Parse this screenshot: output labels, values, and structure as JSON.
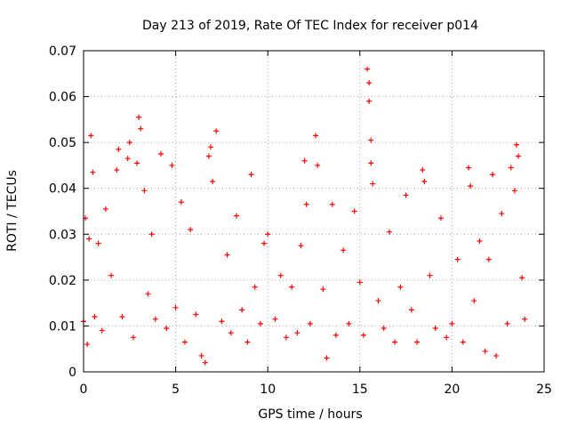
{
  "chart_data": {
    "type": "scatter",
    "title": "Day 213 of 2019, Rate Of TEC Index for receiver p014",
    "xlabel": "GPS time / hours",
    "ylabel": "ROTI / TECUs",
    "xlim": [
      0,
      25
    ],
    "ylim": [
      0,
      0.07
    ],
    "xticks": [
      0,
      5,
      10,
      15,
      20,
      25
    ],
    "xtick_labels": [
      "0",
      "5",
      "10",
      "15",
      "20",
      "25"
    ],
    "yticks": [
      0,
      0.01,
      0.02,
      0.03,
      0.04,
      0.05,
      0.06,
      0.07
    ],
    "ytick_labels": [
      "0",
      "0.01",
      "0.02",
      "0.03",
      "0.04",
      "0.05",
      "0.06",
      "0.07"
    ],
    "grid": true,
    "marker": "+",
    "color": "#ff0000",
    "data_gap_hours": [
      10.0,
      10.3
    ],
    "series": [
      {
        "name": "ROTI",
        "points": [
          [
            0.0,
            0.011
          ],
          [
            0.1,
            0.0335
          ],
          [
            0.2,
            0.006
          ],
          [
            0.3,
            0.029
          ],
          [
            0.4,
            0.0515
          ],
          [
            0.5,
            0.0435
          ],
          [
            0.6,
            0.012
          ],
          [
            0.8,
            0.028
          ],
          [
            1.0,
            0.009
          ],
          [
            1.2,
            0.0355
          ],
          [
            1.5,
            0.021
          ],
          [
            1.8,
            0.044
          ],
          [
            1.9,
            0.0485
          ],
          [
            2.1,
            0.012
          ],
          [
            2.4,
            0.0465
          ],
          [
            2.5,
            0.05
          ],
          [
            2.7,
            0.0075
          ],
          [
            2.9,
            0.0455
          ],
          [
            3.0,
            0.0555
          ],
          [
            3.1,
            0.053
          ],
          [
            3.3,
            0.0395
          ],
          [
            3.5,
            0.017
          ],
          [
            3.7,
            0.03
          ],
          [
            3.9,
            0.0115
          ],
          [
            4.2,
            0.0475
          ],
          [
            4.5,
            0.0095
          ],
          [
            4.8,
            0.045
          ],
          [
            5.0,
            0.014
          ],
          [
            5.3,
            0.037
          ],
          [
            5.5,
            0.0065
          ],
          [
            5.8,
            0.031
          ],
          [
            6.1,
            0.0125
          ],
          [
            6.4,
            0.0035
          ],
          [
            6.6,
            0.002
          ],
          [
            6.8,
            0.047
          ],
          [
            6.9,
            0.049
          ],
          [
            7.0,
            0.0415
          ],
          [
            7.2,
            0.0525
          ],
          [
            7.5,
            0.011
          ],
          [
            7.8,
            0.0255
          ],
          [
            8.0,
            0.0085
          ],
          [
            8.3,
            0.034
          ],
          [
            8.6,
            0.0135
          ],
          [
            8.9,
            0.0065
          ],
          [
            9.1,
            0.043
          ],
          [
            9.3,
            0.0185
          ],
          [
            9.6,
            0.0105
          ],
          [
            9.8,
            0.028
          ],
          [
            10.0,
            0.03
          ],
          [
            10.4,
            0.0115
          ],
          [
            10.7,
            0.021
          ],
          [
            11.0,
            0.0075
          ],
          [
            11.3,
            0.0185
          ],
          [
            11.6,
            0.0085
          ],
          [
            11.8,
            0.0275
          ],
          [
            12.0,
            0.046
          ],
          [
            12.1,
            0.0365
          ],
          [
            12.3,
            0.0105
          ],
          [
            12.6,
            0.0515
          ],
          [
            12.7,
            0.045
          ],
          [
            13.0,
            0.018
          ],
          [
            13.2,
            0.003
          ],
          [
            13.5,
            0.0365
          ],
          [
            13.7,
            0.008
          ],
          [
            14.1,
            0.0265
          ],
          [
            14.4,
            0.0105
          ],
          [
            14.7,
            0.035
          ],
          [
            15.0,
            0.0195
          ],
          [
            15.2,
            0.008
          ],
          [
            15.4,
            0.066
          ],
          [
            15.5,
            0.063
          ],
          [
            15.5,
            0.059
          ],
          [
            15.6,
            0.0505
          ],
          [
            15.6,
            0.0455
          ],
          [
            15.7,
            0.041
          ],
          [
            16.0,
            0.0155
          ],
          [
            16.3,
            0.0095
          ],
          [
            16.6,
            0.0305
          ],
          [
            16.9,
            0.0065
          ],
          [
            17.2,
            0.0185
          ],
          [
            17.5,
            0.0385
          ],
          [
            17.8,
            0.0135
          ],
          [
            18.1,
            0.0065
          ],
          [
            18.4,
            0.044
          ],
          [
            18.5,
            0.0415
          ],
          [
            18.8,
            0.021
          ],
          [
            19.1,
            0.0095
          ],
          [
            19.4,
            0.0335
          ],
          [
            19.7,
            0.0075
          ],
          [
            20.0,
            0.0105
          ],
          [
            20.3,
            0.0245
          ],
          [
            20.6,
            0.0065
          ],
          [
            20.9,
            0.0445
          ],
          [
            21.0,
            0.0405
          ],
          [
            21.2,
            0.0155
          ],
          [
            21.5,
            0.0285
          ],
          [
            21.8,
            0.0045
          ],
          [
            22.0,
            0.0245
          ],
          [
            22.2,
            0.043
          ],
          [
            22.4,
            0.0035
          ],
          [
            22.7,
            0.0345
          ],
          [
            23.0,
            0.0105
          ],
          [
            23.2,
            0.0445
          ],
          [
            23.4,
            0.0395
          ],
          [
            23.5,
            0.0495
          ],
          [
            23.6,
            0.047
          ],
          [
            23.8,
            0.0205
          ],
          [
            23.95,
            0.0115
          ]
        ]
      }
    ]
  }
}
